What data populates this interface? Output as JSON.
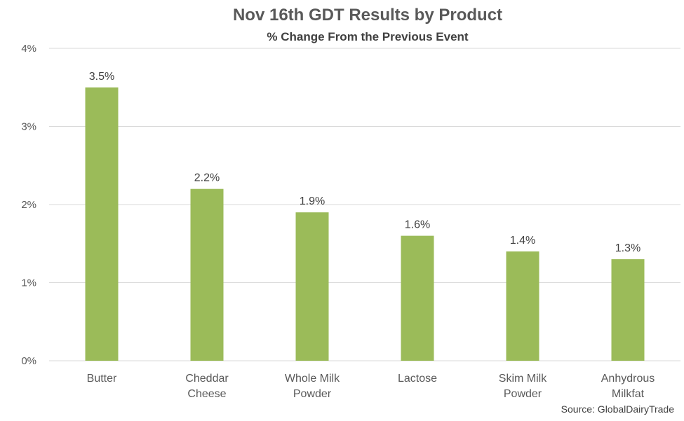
{
  "chart_data": {
    "type": "bar",
    "title": "Nov 16th GDT Results by Product",
    "subtitle": "% Change From the Previous Event",
    "categories": [
      [
        "Butter"
      ],
      [
        "Cheddar",
        "Cheese"
      ],
      [
        "Whole Milk",
        "Powder"
      ],
      [
        "Lactose"
      ],
      [
        "Skim Milk",
        "Powder"
      ],
      [
        "Anhydrous",
        "Milkfat"
      ]
    ],
    "values": [
      3.5,
      2.2,
      1.9,
      1.6,
      1.4,
      1.3
    ],
    "data_labels": [
      "3.5%",
      "2.2%",
      "1.9%",
      "1.6%",
      "1.4%",
      "1.3%"
    ],
    "y_ticks": [
      0,
      1,
      2,
      3,
      4
    ],
    "y_tick_labels": [
      "0%",
      "1%",
      "2%",
      "3%",
      "4%"
    ],
    "ylim": [
      0,
      4
    ],
    "grid": true,
    "legend": "none",
    "bar_color": "#9BBB59",
    "gridline_color": "#D9D9D9"
  },
  "source": "Source: GlobalDairyTrade"
}
